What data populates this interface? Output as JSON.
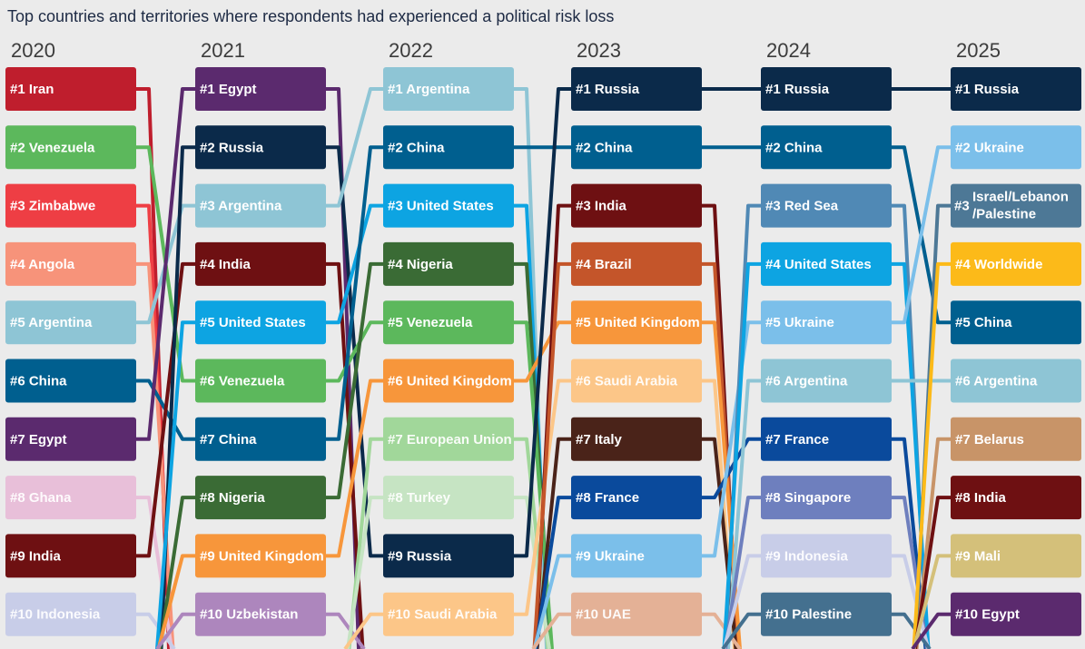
{
  "chart_data": {
    "type": "bump",
    "title": "Top countries and territories where respondents had experienced a political risk loss",
    "years": [
      "2020",
      "2021",
      "2022",
      "2023",
      "2024",
      "2025"
    ],
    "rankings": [
      [
        "#1 Iran",
        "#2 Venezuela",
        "#3 Zimbabwe",
        "#4 Angola",
        "#5 Argentina",
        "#6 China",
        "#7 Egypt",
        "#8 Ghana",
        "#9 India",
        "#10 Indonesia"
      ],
      [
        "#1 Egypt",
        "#2 Russia",
        "#3 Argentina",
        "#4 India",
        "#5 United States",
        "#6 Venezuela",
        "#7 China",
        "#8 Nigeria",
        "#9 United Kingdom",
        "#10 Uzbekistan"
      ],
      [
        "#1 Argentina",
        "#2 China",
        "#3 United States",
        "#4 Nigeria",
        "#5 Venezuela",
        "#6 United Kingdom",
        "#7 European Union",
        "#8 Turkey",
        "#9 Russia",
        "#10 Saudi Arabia"
      ],
      [
        "#1 Russia",
        "#2 China",
        "#3 India",
        "#4 Brazil",
        "#5 United Kingdom",
        "#6 Saudi Arabia",
        "#7 Italy",
        "#8 France",
        "#9 Ukraine",
        "#10 UAE"
      ],
      [
        "#1 Russia",
        "#2 China",
        "#3 Red Sea",
        "#4 United States",
        "#5 Ukraine",
        "#6 Argentina",
        "#7 France",
        "#8 Singapore",
        "#9 Indonesia",
        "#10 Palestine"
      ],
      [
        "#1 Russia",
        "#2 Ukraine",
        "#3 Israel/Lebanon /Palestine",
        "#4 Worldwide",
        "#5 China",
        "#6 Argentina",
        "#7 Belarus",
        "#8 India",
        "#9 Mali",
        "#10 Egypt"
      ]
    ],
    "countries": {
      "Iran": "#bf1e2d",
      "Venezuela": "#5cb85c",
      "Zimbabwe": "#ee3e44",
      "Angola": "#f7937a",
      "Argentina": "#8ec5d5",
      "China": "#005f8f",
      "Egypt": "#5b2a6e",
      "Ghana": "#e8bfd9",
      "India": "#6e1012",
      "Indonesia": "#c8cde8",
      "Russia": "#0b2a4a",
      "United States": "#0da4e2",
      "Nigeria": "#3a6b35",
      "United Kingdom": "#f7963b",
      "Uzbekistan": "#ad86bd",
      "European Union": "#a1d79a",
      "Turkey": "#c6e4c3",
      "Saudi Arabia": "#fcc688",
      "Brazil": "#c4552a",
      "Italy": "#4a2319",
      "France": "#0a4a9c",
      "Ukraine": "#7bbfea",
      "UAE": "#e4b196",
      "Red Sea": "#5089b5",
      "Singapore": "#6e7fbe",
      "Palestine": "#44708f",
      "Israel/Lebanon /Palestine": "#4d7896",
      "Worldwide": "#fcba19",
      "Belarus": "#c89468",
      "Mali": "#d4c07a"
    },
    "lightText": [
      "Ghana",
      "Indonesia",
      "European Union",
      "Turkey",
      "Saudi Arabia",
      "UAE"
    ]
  }
}
